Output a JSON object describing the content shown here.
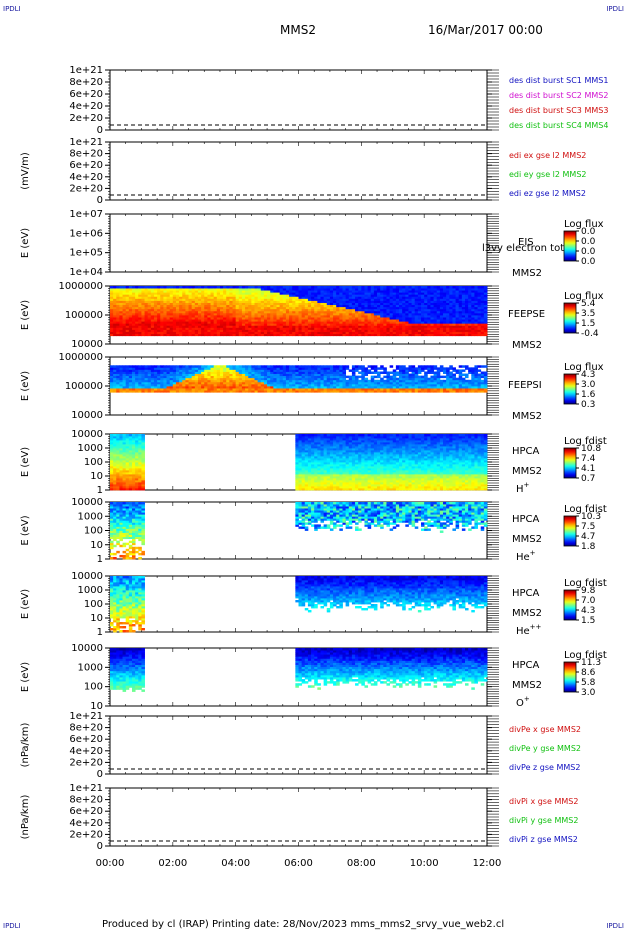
{
  "corner_label": "IPDLI",
  "header": {
    "spacecraft": "MMS2",
    "datetime": "16/Mar/2017 00:00"
  },
  "footer": "Produced by cl (IRAP)   Printing date: 28/Nov/2023   mms_mms2_srvy_vue_web2.cl",
  "chart_data": [
    {
      "id": "des-dist",
      "type": "line",
      "ylabel": "",
      "yticks": [
        "1e+21",
        "8e+20",
        "6e+20",
        "4e+20",
        "2e+20",
        "0"
      ],
      "legend": [
        {
          "text": "des dist burst SC1 MMS1",
          "color": "#1010c0"
        },
        {
          "text": "des dist burst SC2 MMS2",
          "color": "#d010d0"
        },
        {
          "text": "des dist burst SC3 MMS3",
          "color": "#d01010"
        },
        {
          "text": "des dist burst SC4 MMS4",
          "color": "#10c010"
        }
      ]
    },
    {
      "id": "edi-e",
      "type": "line",
      "ylabel": "(mV/m)",
      "yticks": [
        "1e+21",
        "8e+20",
        "6e+20",
        "4e+20",
        "2e+20",
        "0"
      ],
      "legend": [
        {
          "text": "edi ex gse l2 MMS2",
          "color": "#d01010"
        },
        {
          "text": "edi ey gse l2 MMS2",
          "color": "#10c010"
        },
        {
          "text": "edi ez gse l2 MMS2",
          "color": "#1010c0"
        }
      ]
    },
    {
      "id": "eis",
      "type": "heatmap",
      "ylabel": "E (eV)",
      "yticks": [
        "1e+07",
        "1e+06",
        "1e+05",
        "1e+04"
      ],
      "instrument": [
        "EIS",
        "MMS2"
      ],
      "overlap_text": "l3vy electron tot",
      "cbar_title": "Log flux",
      "cbar_ticks": [
        "0.0",
        "0.0",
        "0.0",
        "0.0"
      ]
    },
    {
      "id": "feeps-e",
      "type": "heatmap",
      "ylabel": "E (eV)",
      "yticks": [
        "1000000",
        "100000",
        "10000"
      ],
      "instrument": [
        "FEEPSE",
        "MMS2"
      ],
      "cbar_title": "Log flux",
      "cbar_ticks": [
        "5.4",
        "3.5",
        "1.5",
        "-0.4"
      ]
    },
    {
      "id": "feeps-i",
      "type": "heatmap",
      "ylabel": "E (eV)",
      "yticks": [
        "1000000",
        "100000",
        "10000"
      ],
      "instrument": [
        "FEEPSI",
        "MMS2"
      ],
      "cbar_title": "Log flux",
      "cbar_ticks": [
        "4.3",
        "3.0",
        "1.6",
        "0.3"
      ]
    },
    {
      "id": "hpca-h",
      "type": "heatmap",
      "ylabel": "E (eV)",
      "yticks": [
        "10000",
        "1000",
        "100",
        "10",
        "1"
      ],
      "instrument": [
        "HPCA",
        "MMS2"
      ],
      "species": "H",
      "charge": "+",
      "cbar_title": "Log fdist",
      "cbar_ticks": [
        "10.8",
        "7.4",
        "4.1",
        "0.7"
      ]
    },
    {
      "id": "hpca-he",
      "type": "heatmap",
      "ylabel": "E (eV)",
      "yticks": [
        "10000",
        "1000",
        "100",
        "10",
        "1"
      ],
      "instrument": [
        "HPCA",
        "MMS2"
      ],
      "species": "He",
      "charge": "+",
      "cbar_title": "Log fdist",
      "cbar_ticks": [
        "10.3",
        "7.5",
        "4.7",
        "1.8"
      ]
    },
    {
      "id": "hpca-he2",
      "type": "heatmap",
      "ylabel": "E (eV)",
      "yticks": [
        "10000",
        "1000",
        "100",
        "10",
        "1"
      ],
      "instrument": [
        "HPCA",
        "MMS2"
      ],
      "species": "He",
      "charge": "++",
      "cbar_title": "Log fdist",
      "cbar_ticks": [
        "9.8",
        "7.0",
        "4.3",
        "1.5"
      ]
    },
    {
      "id": "hpca-o",
      "type": "heatmap",
      "ylabel": "E (eV)",
      "yticks": [
        "10000",
        "1000",
        "100",
        "10"
      ],
      "instrument": [
        "HPCA",
        "MMS2"
      ],
      "species": "O",
      "charge": "+",
      "cbar_title": "Log fdist",
      "cbar_ticks": [
        "11.3",
        "8.6",
        "5.8",
        "3.0"
      ]
    },
    {
      "id": "divpe",
      "type": "line",
      "ylabel": "(nPa/km)",
      "yticks": [
        "1e+21",
        "8e+20",
        "6e+20",
        "4e+20",
        "2e+20",
        "0"
      ],
      "legend": [
        {
          "text": "divPe x gse MMS2",
          "color": "#d01010"
        },
        {
          "text": "divPe y gse MMS2",
          "color": "#10c010"
        },
        {
          "text": "divPe z gse MMS2",
          "color": "#1010c0"
        }
      ]
    },
    {
      "id": "divpi",
      "type": "line",
      "ylabel": "(nPa/km)",
      "yticks": [
        "1e+21",
        "8e+20",
        "6e+20",
        "4e+20",
        "2e+20",
        "0"
      ],
      "legend": [
        {
          "text": "divPi x gse MMS2",
          "color": "#d01010"
        },
        {
          "text": "divPi y gse MMS2",
          "color": "#10c010"
        },
        {
          "text": "divPi z gse MMS2",
          "color": "#1010c0"
        }
      ]
    }
  ],
  "xaxis": {
    "ticks": [
      "00:00",
      "02:00",
      "04:00",
      "06:00",
      "08:00",
      "10:00",
      "12:00"
    ]
  }
}
